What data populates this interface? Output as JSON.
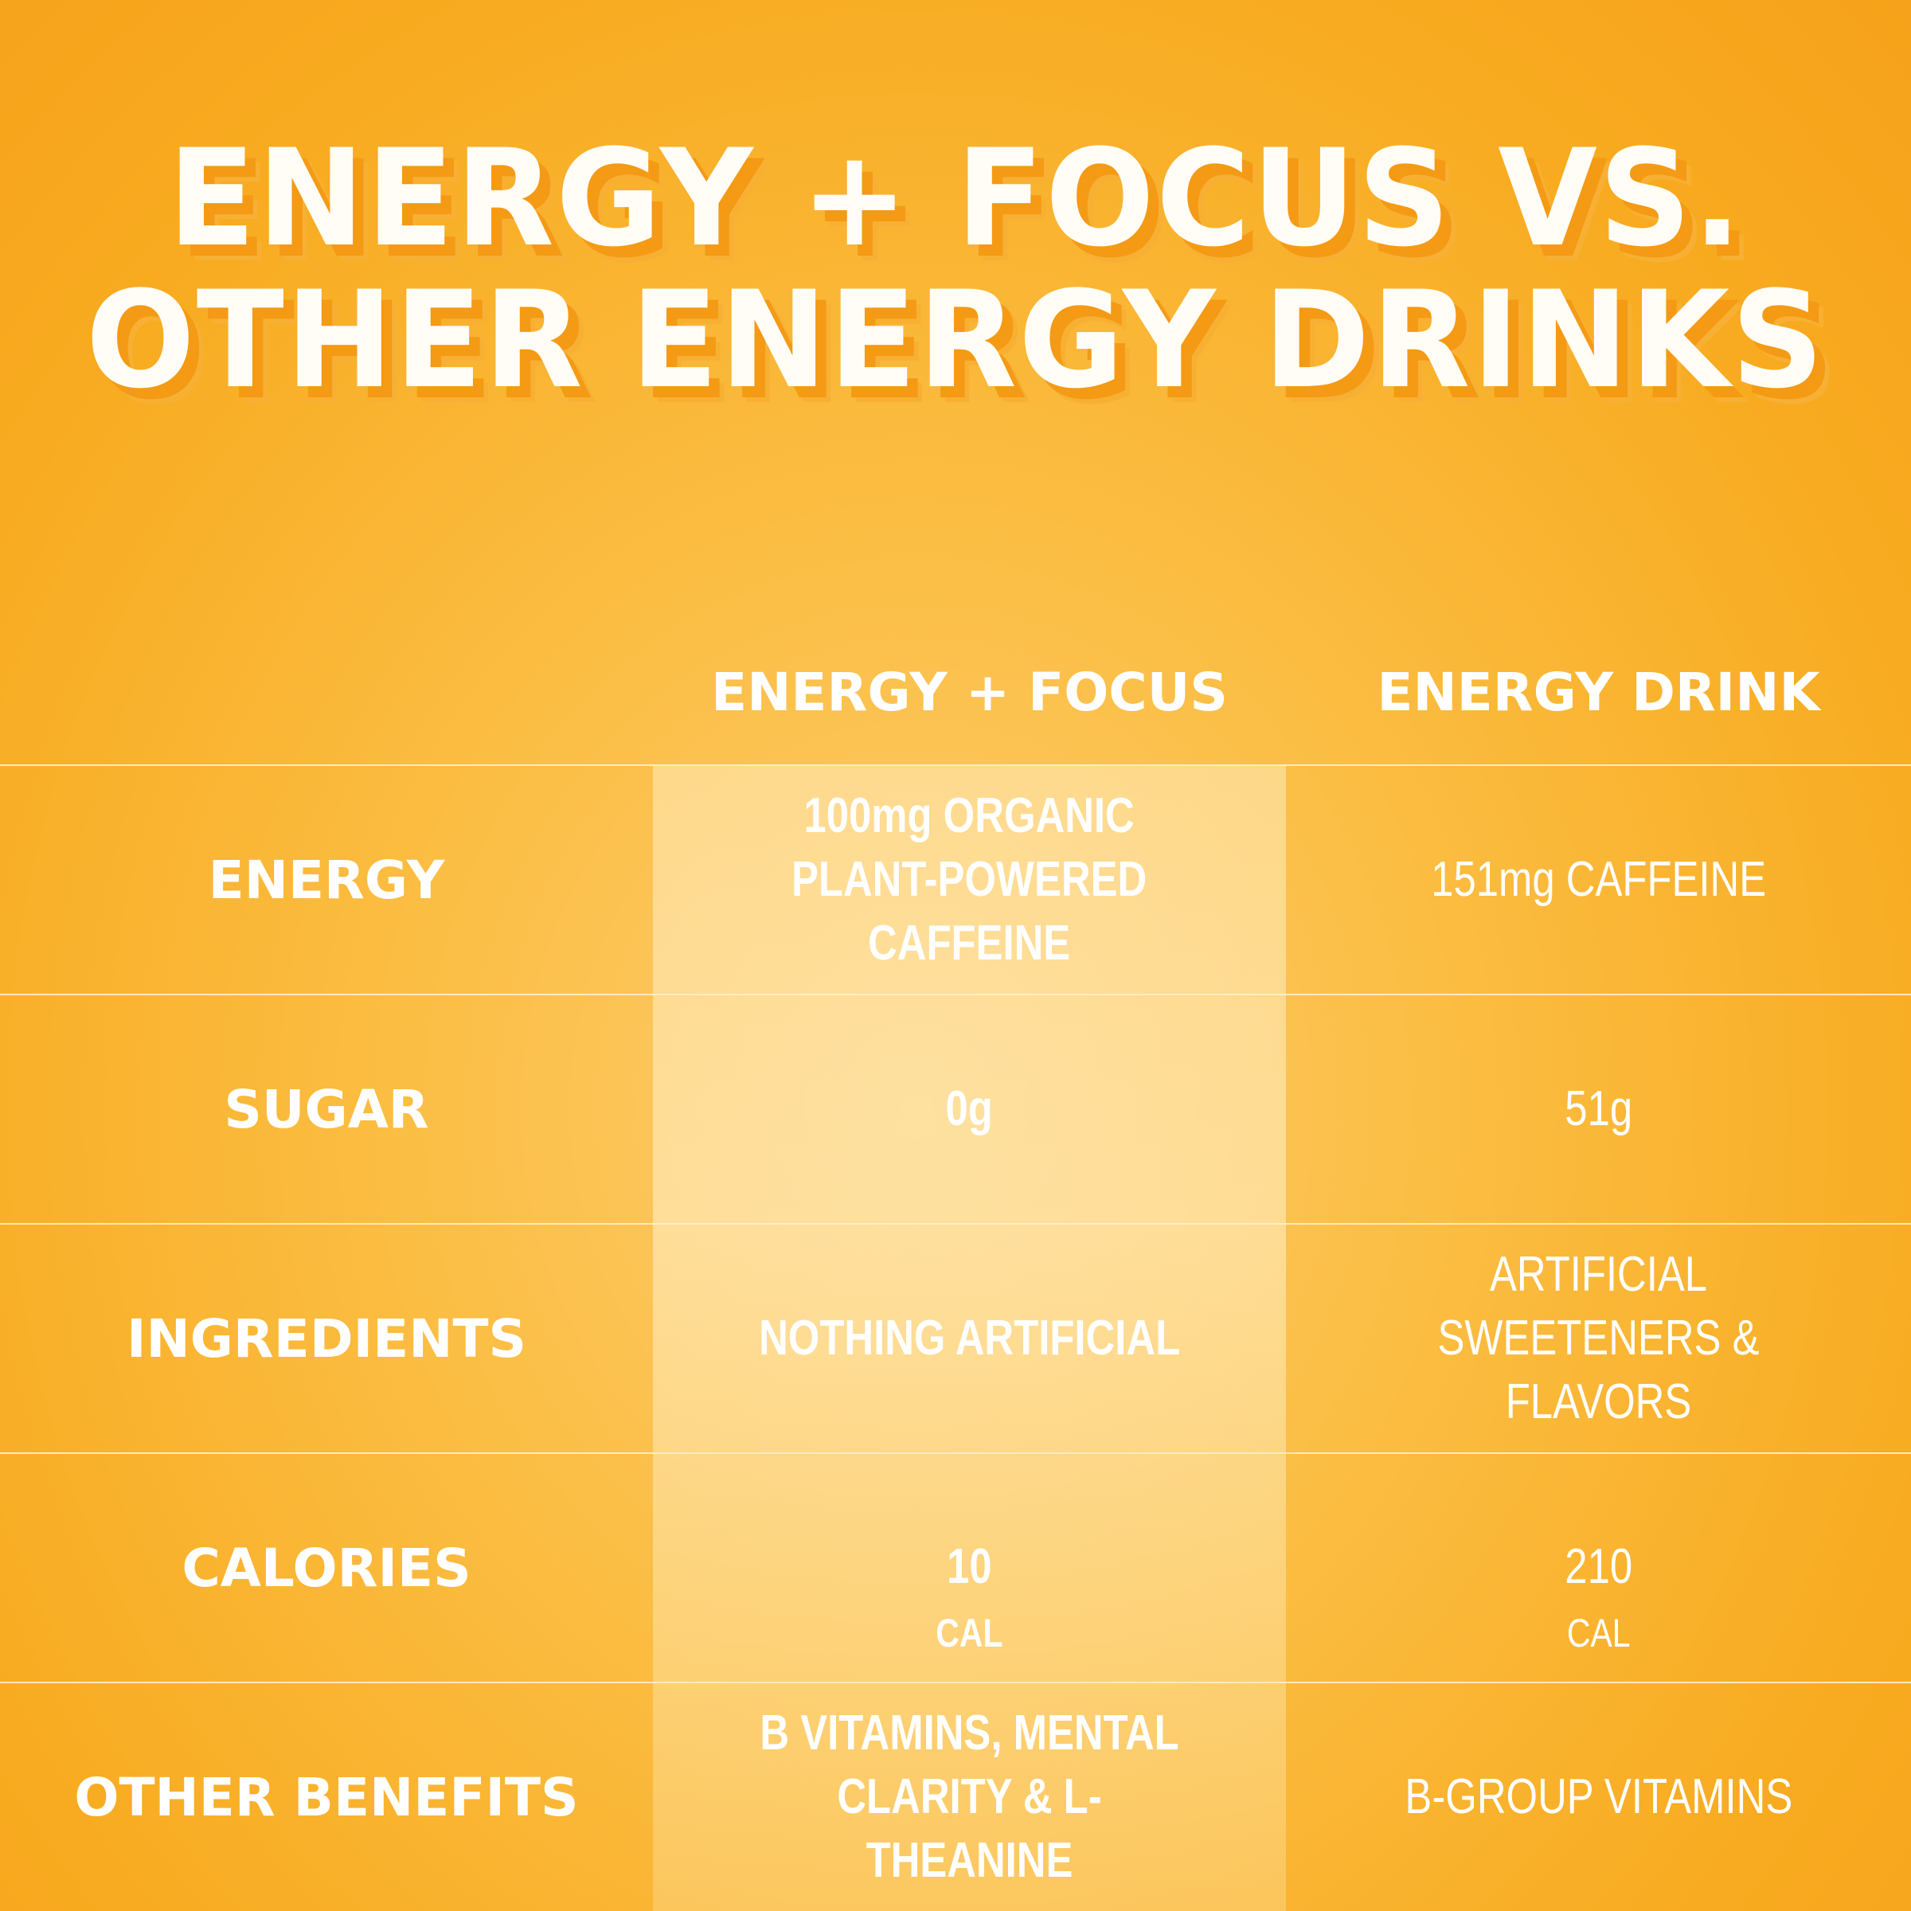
{
  "title": {
    "line1": "ENERGY + FOCUS VS.",
    "line2": "OTHER ENERGY DRINKS"
  },
  "columns": {
    "a": "ENERGY + FOCUS",
    "b": "ENERGY DRINK"
  },
  "rows": [
    {
      "label": "ENERGY",
      "a": "100mg ORGANIC\nPLANT-POWERED\nCAFFEINE",
      "b": "151mg CAFFEINE"
    },
    {
      "label": "SUGAR",
      "a": "0g",
      "b": "51g"
    },
    {
      "label": "INGREDIENTS",
      "a": "NOTHING ARTIFICIAL",
      "b": "ARTIFICIAL\nSWEETENERS & FLAVORS"
    },
    {
      "label": "CALORIES",
      "a_num": "10",
      "a_unit": "CAL",
      "b_num": "210",
      "b_unit": "CAL"
    },
    {
      "label": "OTHER BENEFITS",
      "a": "B VITAMINS, MENTAL\nCLARITY &  L-THEANINE",
      "b": "B-GROUP VITAMINS"
    }
  ],
  "colors": {
    "background": "#fbbd42",
    "title_shadow": "#f49a14",
    "highlight": "#ffe4b0",
    "text": "#ffffff"
  }
}
